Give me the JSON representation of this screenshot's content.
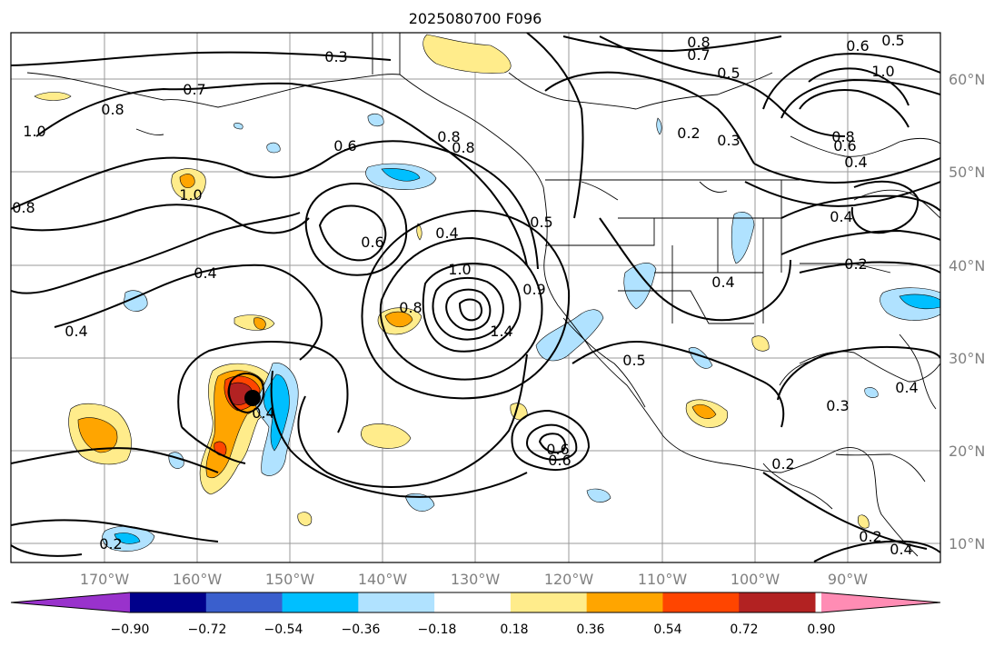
{
  "title": "2025080700 F096",
  "lon_labels": [
    "170°W",
    "160°W",
    "150°W",
    "140°W",
    "130°W",
    "120°W",
    "110°W",
    "100°W",
    "90°W"
  ],
  "lat_labels": [
    "60°N",
    "50°N",
    "40°N",
    "30°N",
    "20°N",
    "10°N"
  ],
  "colorbar": {
    "colors": [
      "#9932cc",
      "#00008b",
      "#3a5fcd",
      "#00bfff",
      "#b0e2ff",
      "#ffffff",
      "#ffec8b",
      "#ffa500",
      "#ff4500",
      "#b22222",
      "#ff8cb4"
    ],
    "tick_labels": [
      "−0.90",
      "−0.72",
      "−0.54",
      "−0.36",
      "−0.18",
      "0.18",
      "0.36",
      "0.54",
      "0.72",
      "0.90"
    ]
  },
  "contour_labels": [
    "0.3",
    "0.8",
    "0.7",
    "0.6",
    "0.5",
    "1.0",
    "0.7",
    "0.8",
    "1.0",
    "0.5",
    "0.2",
    "0.3",
    "0.8",
    "0.6",
    "0.4",
    "0.8",
    "0.6",
    "0.8",
    "1.0",
    "0.8",
    "0.6",
    "0.4",
    "0.4",
    "0.2",
    "0.4",
    "0.4",
    "1.0",
    "0.5",
    "0.9",
    "0.8",
    "1.4",
    "0.4",
    "0.4",
    "0.3",
    "0.2",
    "0.4",
    "0.2",
    "0.6",
    "0.6",
    "0.4",
    "0.2",
    "0.5"
  ],
  "marker": "storm-center"
}
